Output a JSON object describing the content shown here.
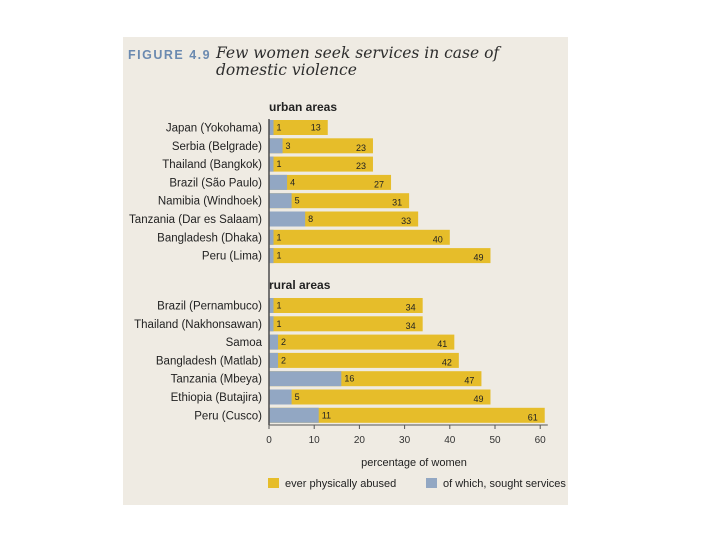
{
  "figure": {
    "label": "FIGURE 4.9",
    "title": "Few women seek services in case of domestic violence"
  },
  "colors": {
    "abused": "#e6bd2a",
    "sought": "#92a7c3",
    "panel": "#efebe3"
  },
  "chart_data": {
    "type": "bar",
    "orientation": "horizontal",
    "xlabel": "percentage of women",
    "xlim": [
      0,
      65
    ],
    "xticks": [
      0,
      10,
      20,
      30,
      40,
      50,
      60
    ],
    "legend": [
      "ever physically abused",
      "of which, sought services"
    ],
    "legend_position": "bottom",
    "groups": [
      {
        "name": "urban areas",
        "categories": [
          "Japan (Yokohama)",
          "Serbia (Belgrade)",
          "Thailand (Bangkok)",
          "Brazil (São Paulo)",
          "Namibia (Windhoek)",
          "Tanzania (Dar es Salaam)",
          "Bangladesh (Dhaka)",
          "Peru (Lima)"
        ],
        "abused": [
          13,
          23,
          23,
          27,
          31,
          33,
          40,
          49
        ],
        "sought": [
          1,
          3,
          1,
          4,
          5,
          8,
          1,
          1
        ]
      },
      {
        "name": "rural areas",
        "categories": [
          "Brazil (Pernambuco)",
          "Thailand (Nakhonsawan)",
          "Samoa",
          "Bangladesh (Matlab)",
          "Tanzania (Mbeya)",
          "Ethiopia (Butajira)",
          "Peru (Cusco)"
        ],
        "abused": [
          34,
          34,
          41,
          42,
          47,
          49,
          61
        ],
        "sought": [
          1,
          1,
          2,
          2,
          16,
          5,
          11
        ]
      }
    ]
  }
}
